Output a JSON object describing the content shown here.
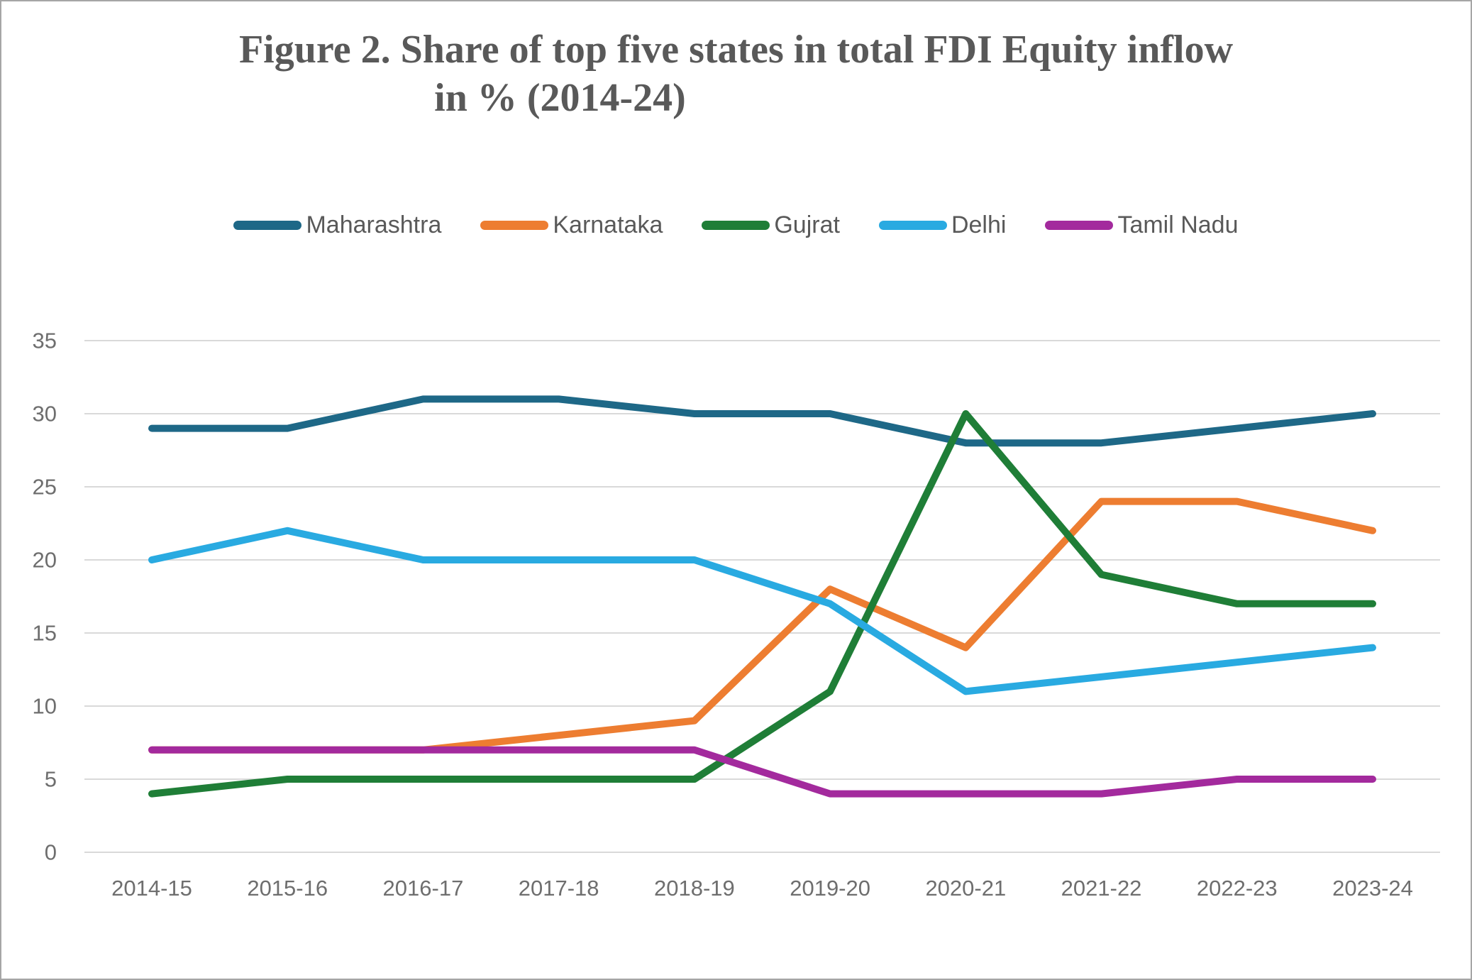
{
  "page": {
    "background": "#FFFFFF",
    "border_color": "#A6A6A6"
  },
  "title": {
    "line1": "Figure 2. Share of top five states in total FDI Equity inflow",
    "line2": "in % (2014-24)",
    "color": "#595959"
  },
  "chart_data": {
    "type": "line",
    "title": "Figure 2. Share of top five states in total FDI Equity inflow in % (2014-24)",
    "xlabel": "",
    "ylabel": "",
    "categories": [
      "2014-15",
      "2015-16",
      "2016-17",
      "2017-18",
      "2018-19",
      "2019-20",
      "2020-21",
      "2021-22",
      "2022-23",
      "2023-24"
    ],
    "series": [
      {
        "name": "Maharashtra",
        "color": "#1E6887",
        "values": [
          29,
          29,
          31,
          31,
          30,
          30,
          28,
          28,
          29,
          30
        ]
      },
      {
        "name": "Karnataka",
        "color": "#ED7D31",
        "values": [
          7,
          7,
          7,
          8,
          9,
          18,
          14,
          24,
          24,
          22
        ]
      },
      {
        "name": "Gujrat",
        "color": "#1F7E37",
        "values": [
          4,
          5,
          5,
          5,
          5,
          11,
          30,
          19,
          17,
          17
        ]
      },
      {
        "name": "Delhi",
        "color": "#29AAE1",
        "values": [
          20,
          22,
          20,
          20,
          20,
          17,
          11,
          12,
          13,
          14
        ]
      },
      {
        "name": "Tamil Nadu",
        "color": "#A32A9D",
        "values": [
          7,
          7,
          7,
          7,
          7,
          4,
          4,
          4,
          5,
          5
        ]
      }
    ],
    "ylim": [
      0,
      35
    ],
    "y_ticks": [
      0,
      5,
      10,
      15,
      20,
      25,
      30,
      35
    ],
    "grid": "horizontal",
    "legend_position": "top"
  },
  "styles": {
    "grid_color": "#D9D9D9",
    "tick_label_color": "#6E6E6E",
    "legend_text_color": "#595959",
    "line_width": 10
  }
}
